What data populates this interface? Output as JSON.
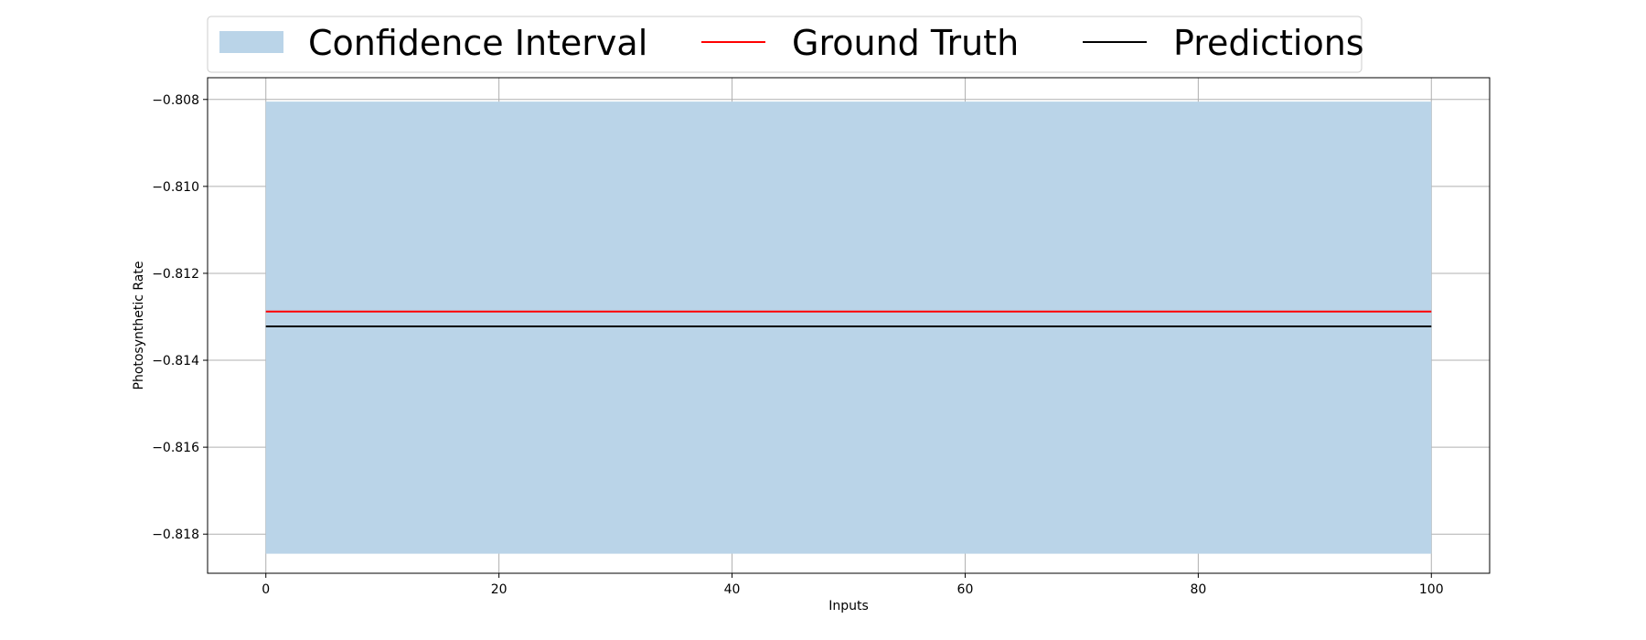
{
  "chart_data": {
    "type": "line",
    "xlabel": "Inputs",
    "ylabel": "Photosynthetic Rate",
    "xlim": [
      -5,
      105
    ],
    "ylim": [
      -0.8189,
      -0.8075
    ],
    "x_ticks": [
      0,
      20,
      40,
      60,
      80,
      100
    ],
    "y_ticks": [
      -0.808,
      -0.81,
      -0.812,
      -0.814,
      -0.816,
      -0.818
    ],
    "x_tick_labels": [
      "0",
      "20",
      "40",
      "60",
      "80",
      "100"
    ],
    "y_tick_labels": [
      "−0.808",
      "−0.810",
      "−0.812",
      "−0.814",
      "−0.816",
      "−0.818"
    ],
    "grid": true,
    "legend_position": "top-center",
    "confidence_interval": {
      "name": "Confidence Interval",
      "x": [
        0,
        100
      ],
      "lower": [
        -0.81845,
        -0.81845
      ],
      "upper": [
        -0.80805,
        -0.80805
      ],
      "color": "#bad4e8"
    },
    "series": [
      {
        "name": "Ground Truth",
        "x": [
          0,
          100
        ],
        "values": [
          -0.81288,
          -0.81288
        ],
        "color": "#ff0000"
      },
      {
        "name": "Predictions",
        "x": [
          0,
          100
        ],
        "values": [
          -0.81322,
          -0.81322
        ],
        "color": "#000000"
      }
    ]
  }
}
